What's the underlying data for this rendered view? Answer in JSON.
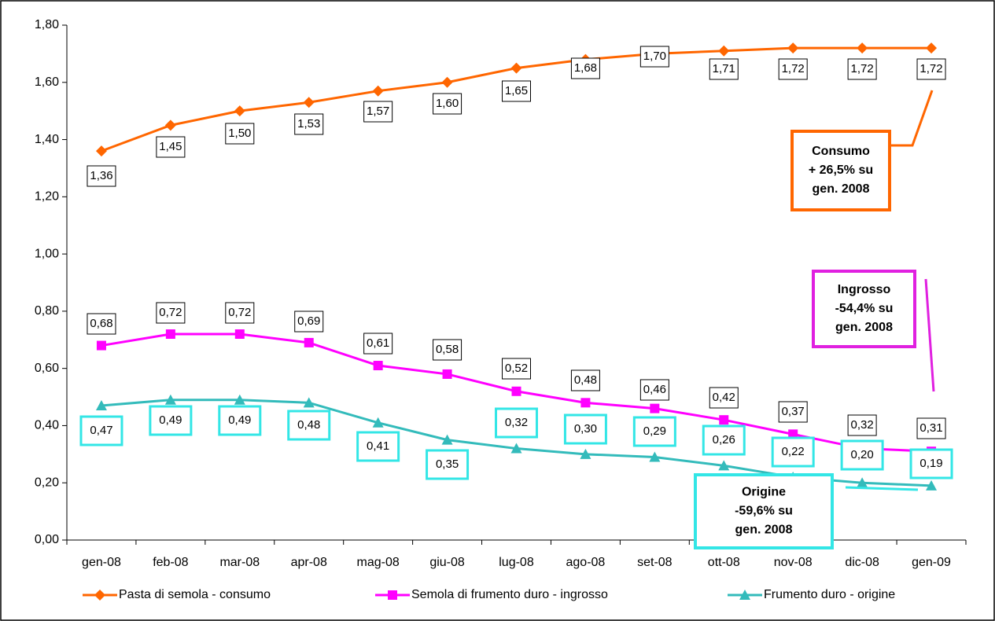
{
  "chart_data": {
    "type": "line",
    "categories": [
      "gen-08",
      "feb-08",
      "mar-08",
      "apr-08",
      "mag-08",
      "giu-08",
      "lug-08",
      "ago-08",
      "set-08",
      "ott-08",
      "nov-08",
      "dic-08",
      "gen-09"
    ],
    "series": [
      {
        "name": "Pasta di semola - consumo",
        "color": "#ff6600",
        "marker": "diamond",
        "values": [
          1.36,
          1.45,
          1.5,
          1.53,
          1.57,
          1.6,
          1.65,
          1.68,
          1.7,
          1.71,
          1.72,
          1.72,
          1.72
        ],
        "value_labels": [
          "1,36",
          "1,45",
          "1,50",
          "1,53",
          "1,57",
          "1,60",
          "1,65",
          "1,68",
          "1,70",
          "1,71",
          "1,72",
          "1,72",
          "1,72"
        ]
      },
      {
        "name": "Semola di frumento duro - ingrosso",
        "color": "#ff00ff",
        "marker": "square",
        "values": [
          0.68,
          0.72,
          0.72,
          0.69,
          0.61,
          0.58,
          0.52,
          0.48,
          0.46,
          0.42,
          0.37,
          0.32,
          0.31
        ],
        "value_labels": [
          "0,68",
          "0,72",
          "0,72",
          "0,69",
          "0,61",
          "0,58",
          "0,52",
          "0,48",
          "0,46",
          "0,42",
          "0,37",
          "0,32",
          "0,31"
        ]
      },
      {
        "name": "Frumento duro - origine",
        "color": "#33bbbb",
        "marker": "triangle",
        "label_box_color": "#33e6e6",
        "values": [
          0.47,
          0.49,
          0.49,
          0.48,
          0.41,
          0.35,
          0.32,
          0.3,
          0.29,
          0.26,
          0.22,
          0.2,
          0.19
        ],
        "value_labels": [
          "0,47",
          "0,49",
          "0,49",
          "0,48",
          "0,41",
          "0,35",
          "0,32",
          "0,30",
          "0,29",
          "0,26",
          "0,22",
          "0,20",
          "0,19"
        ]
      }
    ],
    "ylim": [
      0,
      1.8
    ],
    "yticks": [
      {
        "value": 0,
        "label": "0,00"
      },
      {
        "value": 0.2,
        "label": "0,20"
      },
      {
        "value": 0.4,
        "label": "0,40"
      },
      {
        "value": 0.6,
        "label": "0,60"
      },
      {
        "value": 0.8,
        "label": "0,80"
      },
      {
        "value": 1.0,
        "label": "1,00"
      },
      {
        "value": 1.2,
        "label": "1,20"
      },
      {
        "value": 1.4,
        "label": "1,40"
      },
      {
        "value": 1.6,
        "label": "1,60"
      },
      {
        "value": 1.8,
        "label": "1,80"
      }
    ],
    "legend": "bottom",
    "annotations": [
      {
        "lines": [
          "Consumo",
          "+ 26,5% su",
          "gen. 2008"
        ],
        "color": "#ff6600"
      },
      {
        "lines": [
          "Ingrosso",
          "-54,4% su",
          "gen. 2008"
        ],
        "color": "#e020e0"
      },
      {
        "lines": [
          "Origine",
          "-59,6% su",
          "gen. 2008"
        ],
        "color": "#33e6e6"
      }
    ]
  }
}
